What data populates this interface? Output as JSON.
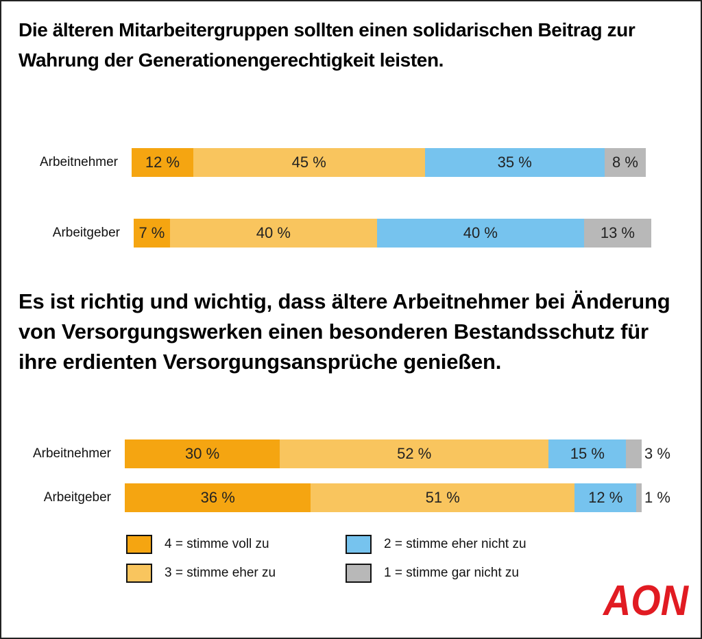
{
  "colors": {
    "4": "#F5A511",
    "3": "#F9C55E",
    "2": "#76C3EE",
    "1": "#B8B8B8",
    "logo": "#E11B22"
  },
  "chart_data": [
    {
      "type": "bar",
      "orientation": "horizontal-stacked-100",
      "title": "Die älteren Mitarbeitergruppen sollten einen solidarischen Beitrag zur Wahrung der Generationengerechtigkeit leisten.",
      "categories": [
        "Arbeitnehmer",
        "Arbeitgeber"
      ],
      "series": [
        {
          "name": "4 = stimme voll zu",
          "key": "4",
          "values": [
            12,
            7
          ],
          "labels": [
            "12 %",
            "7 %"
          ]
        },
        {
          "name": "3 = stimme eher zu",
          "key": "3",
          "values": [
            45,
            40
          ],
          "labels": [
            "45 %",
            "40 %"
          ]
        },
        {
          "name": "2 = stimme eher nicht zu",
          "key": "2",
          "values": [
            35,
            40
          ],
          "labels": [
            "35 %",
            "40 %"
          ]
        },
        {
          "name": "1 = stimme gar nicht zu",
          "key": "1",
          "values": [
            8,
            13
          ],
          "labels": [
            "8 %",
            "13 %"
          ]
        }
      ]
    },
    {
      "type": "bar",
      "orientation": "horizontal-stacked-100",
      "title": "Es ist richtig und wichtig, dass ältere Arbeitnehmer bei Änderung von Versorgungswerken einen besonderen Bestandsschutz für ihre erdienten Versorgungsansprüche genießen.",
      "categories": [
        "Arbeitnehmer",
        "Arbeitgeber"
      ],
      "series": [
        {
          "name": "4 = stimme voll zu",
          "key": "4",
          "values": [
            30,
            36
          ],
          "labels": [
            "30 %",
            "36 %"
          ]
        },
        {
          "name": "3 = stimme eher zu",
          "key": "3",
          "values": [
            52,
            51
          ],
          "labels": [
            "52 %",
            "51 %"
          ]
        },
        {
          "name": "2 = stimme eher nicht zu",
          "key": "2",
          "values": [
            15,
            12
          ],
          "labels": [
            "15 %",
            "12 %"
          ]
        },
        {
          "name": "1 = stimme gar nicht zu",
          "key": "1",
          "values": [
            3,
            1
          ],
          "labels": [
            "3 %",
            "1 %"
          ]
        }
      ]
    }
  ],
  "legend": [
    {
      "key": "4",
      "label": "4 = stimme voll zu"
    },
    {
      "key": "2",
      "label": "2 = stimme eher nicht zu"
    },
    {
      "key": "3",
      "label": "3 = stimme eher zu"
    },
    {
      "key": "1",
      "label": "1 = stimme gar nicht zu"
    }
  ],
  "logo": "AON"
}
